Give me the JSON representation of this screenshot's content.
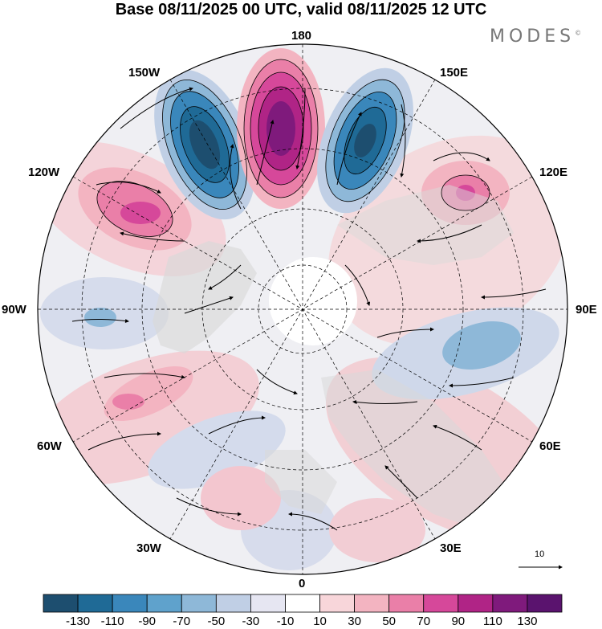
{
  "title": "Base 08/11/2025 00 UTC, valid 08/11/2025 12 UTC",
  "brand": "MODES",
  "brand_mark": "©",
  "longitude_labels": {
    "lon_180": "180",
    "lon_150w": "150W",
    "lon_150e": "150E",
    "lon_120w": "120W",
    "lon_120e": "120E",
    "lon_90w": "90W",
    "lon_90e": "90E",
    "lon_60w": "60W",
    "lon_60e": "60E",
    "lon_30w": "30W",
    "lon_30e": "30E",
    "lon_0": "0"
  },
  "reference_vector": {
    "label": "10"
  },
  "colorbar": {
    "colors": [
      "#1d4e6f",
      "#1f6a96",
      "#3a87bb",
      "#5fa2cc",
      "#8eb8d8",
      "#c0cfe5",
      "#e6e6f2",
      "#ffffff",
      "#f8d6da",
      "#f3b4c1",
      "#ea7fa8",
      "#d6489a",
      "#b02486",
      "#7f1a7c",
      "#5a136e"
    ],
    "ticks": [
      "-130",
      "-110",
      "-90",
      "-70",
      "-50",
      "-30",
      "-10",
      "10",
      "30",
      "50",
      "70",
      "90",
      "110",
      "130"
    ]
  },
  "anomaly_colors": {
    "neg_strong": "#1d4e6f",
    "neg_mid": "#3a87bb",
    "neg_light": "#8eb8d8",
    "neg_faint": "#c0cfe5",
    "pos_faint": "#f8d6da",
    "pos_light": "#f3b4c1",
    "pos_mid": "#ea7fa8",
    "pos_strong": "#b02486",
    "pos_max": "#5a136e",
    "land": "#d9d9d9"
  }
}
